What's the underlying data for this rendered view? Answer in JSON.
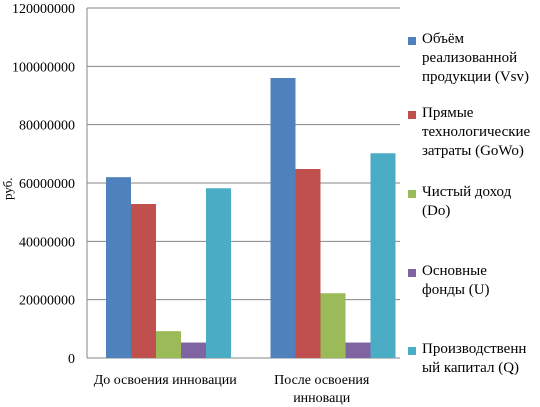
{
  "chart_data": {
    "type": "bar",
    "categories": [
      "До освоения инновации",
      "После освоения\nинноваци"
    ],
    "series": [
      {
        "name": "Объём реализованной продукции (Vsv)",
        "color": "#4F81BD",
        "values": [
          62000000,
          96000000
        ]
      },
      {
        "name": "Прямые технологические затраты (GoWo)",
        "color": "#C0504D",
        "values": [
          52800000,
          64800000
        ]
      },
      {
        "name": "Чистый доход (Do)",
        "color": "#9BBB59",
        "values": [
          9200000,
          22200000
        ]
      },
      {
        "name": "Основные фонды (U)",
        "color": "#8064A2",
        "values": [
          5300000,
          5300000
        ]
      },
      {
        "name": "Производственный капитал (Q)",
        "color": "#4BACC6",
        "values": [
          58200000,
          70200000
        ]
      }
    ],
    "ylabel": "руб.",
    "ylim": [
      0,
      120000000
    ],
    "yticks": [
      "0",
      "20000000",
      "40000000",
      "60000000",
      "80000000",
      "100000000",
      "120000000"
    ],
    "grid": true,
    "legend_position": "right"
  },
  "legend": [
    {
      "label": "Объём\nреализованной\nпродукции (Vsv)",
      "color": "#4F81BD"
    },
    {
      "label": "Прямые\nтехнологические\nзатраты (GoWo)",
      "color": "#C0504D"
    },
    {
      "label": "Чистый доход\n(Do)",
      "color": "#9BBB59"
    },
    {
      "label": "Основные\nфонды (U)",
      "color": "#8064A2"
    },
    {
      "label": "Производственн\nый капитал (Q)",
      "color": "#4BACC6"
    }
  ]
}
